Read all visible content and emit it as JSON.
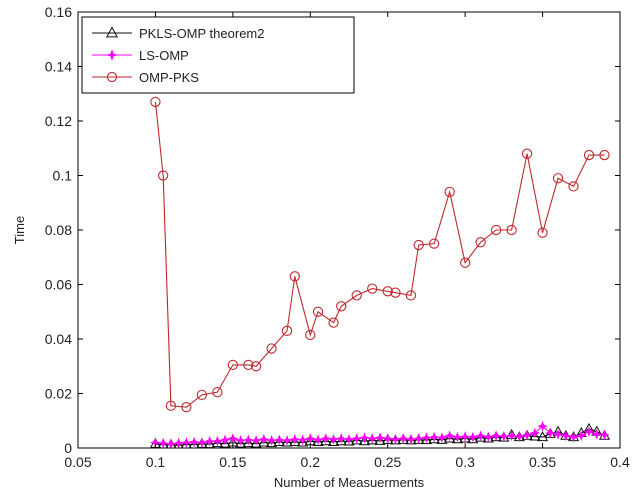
{
  "chart_data": {
    "type": "line",
    "title": "",
    "xlabel": "Number of Measuerments",
    "ylabel": "Time",
    "xlim": [
      0.05,
      0.4
    ],
    "ylim": [
      0,
      0.16
    ],
    "xticks": [
      0.05,
      0.1,
      0.15,
      0.2,
      0.25,
      0.3,
      0.35,
      0.4
    ],
    "xtick_labels": [
      "0.05",
      "0.1",
      "0.15",
      "0.2",
      "0.25",
      "0.3",
      "0.35",
      "0.4"
    ],
    "yticks": [
      0,
      0.02,
      0.04,
      0.06,
      0.08,
      0.1,
      0.12,
      0.14,
      0.16
    ],
    "ytick_labels": [
      "0",
      "0.02",
      "0.04",
      "0.06",
      "0.08",
      "0.1",
      "0.12",
      "0.14",
      "0.16"
    ],
    "grid": false,
    "legend_position": "top-left",
    "x": [
      0.1,
      0.105,
      0.11,
      0.115,
      0.12,
      0.125,
      0.13,
      0.135,
      0.14,
      0.145,
      0.15,
      0.155,
      0.16,
      0.165,
      0.17,
      0.175,
      0.18,
      0.185,
      0.19,
      0.195,
      0.2,
      0.205,
      0.21,
      0.215,
      0.22,
      0.225,
      0.23,
      0.235,
      0.24,
      0.245,
      0.25,
      0.255,
      0.26,
      0.265,
      0.27,
      0.275,
      0.28,
      0.285,
      0.29,
      0.295,
      0.3,
      0.305,
      0.31,
      0.315,
      0.32,
      0.325,
      0.33,
      0.335,
      0.34,
      0.345,
      0.35,
      0.355,
      0.36,
      0.365,
      0.37,
      0.375,
      0.38,
      0.385,
      0.39
    ],
    "series": [
      {
        "name": "PKLS-OMP theorem2",
        "color": "#111111",
        "marker": "triangle",
        "values": [
          0.0015,
          0.0012,
          0.0012,
          0.001,
          0.0013,
          0.0013,
          0.0015,
          0.0014,
          0.0018,
          0.0016,
          0.002,
          0.0016,
          0.0018,
          0.0016,
          0.002,
          0.0018,
          0.0022,
          0.002,
          0.0022,
          0.002,
          0.0025,
          0.0022,
          0.0025,
          0.0022,
          0.0025,
          0.0024,
          0.0028,
          0.0025,
          0.0028,
          0.0026,
          0.003,
          0.0028,
          0.003,
          0.0028,
          0.003,
          0.0029,
          0.0032,
          0.003,
          0.0035,
          0.0032,
          0.0035,
          0.0032,
          0.0038,
          0.0035,
          0.004,
          0.0038,
          0.0048,
          0.004,
          0.0045,
          0.0042,
          0.004,
          0.0052,
          0.006,
          0.0045,
          0.004,
          0.0055,
          0.007,
          0.006,
          0.0045
        ]
      },
      {
        "name": "LS-OMP",
        "color": "#ff00ff",
        "marker": "star",
        "values": [
          0.002,
          0.0018,
          0.0015,
          0.0018,
          0.002,
          0.0022,
          0.002,
          0.0025,
          0.0025,
          0.003,
          0.0035,
          0.0028,
          0.003,
          0.0028,
          0.0032,
          0.0028,
          0.003,
          0.0028,
          0.0032,
          0.003,
          0.0035,
          0.003,
          0.0035,
          0.0032,
          0.0035,
          0.0032,
          0.0035,
          0.0038,
          0.0035,
          0.0038,
          0.0035,
          0.0032,
          0.0035,
          0.0032,
          0.0035,
          0.0038,
          0.004,
          0.0038,
          0.0045,
          0.004,
          0.0042,
          0.004,
          0.0045,
          0.004,
          0.0045,
          0.0042,
          0.0045,
          0.0042,
          0.0048,
          0.0055,
          0.008,
          0.0055,
          0.005,
          0.0045,
          0.004,
          0.0045,
          0.006,
          0.005,
          0.0048
        ]
      },
      {
        "name": "OMP-PKS",
        "color": "#c0282d",
        "marker": "circle",
        "x": [
          0.1,
          0.105,
          0.11,
          0.12,
          0.13,
          0.14,
          0.15,
          0.16,
          0.165,
          0.175,
          0.185,
          0.19,
          0.2,
          0.205,
          0.215,
          0.22,
          0.23,
          0.24,
          0.25,
          0.255,
          0.265,
          0.27,
          0.28,
          0.29,
          0.3,
          0.31,
          0.32,
          0.33,
          0.34,
          0.35,
          0.36,
          0.37,
          0.38,
          0.39
        ],
        "values": [
          0.127,
          0.1,
          0.0155,
          0.015,
          0.0195,
          0.0205,
          0.0305,
          0.0305,
          0.03,
          0.0365,
          0.043,
          0.063,
          0.0415,
          0.05,
          0.046,
          0.052,
          0.056,
          0.0585,
          0.0575,
          0.057,
          0.056,
          0.0745,
          0.075,
          0.094,
          0.068,
          0.0755,
          0.08,
          0.08,
          0.108,
          0.079,
          0.099,
          0.096,
          0.1075,
          0.1075
        ]
      }
    ]
  }
}
